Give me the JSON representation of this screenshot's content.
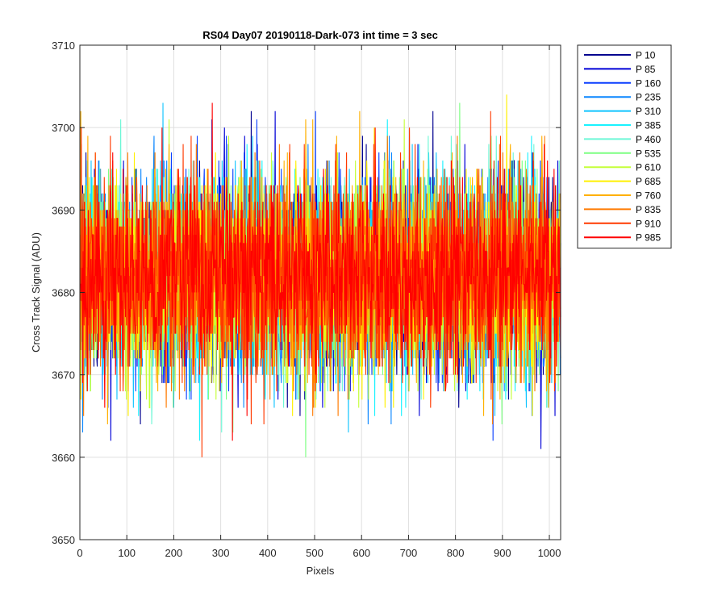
{
  "chart_data": {
    "type": "line",
    "title": "RS04 Day07 20190118-Dark-073 int time = 3 sec",
    "xlabel": "Pixels",
    "ylabel": "Cross Track Signal (ADU)",
    "xlim": [
      0,
      1024
    ],
    "ylim": [
      3650,
      3710
    ],
    "xticks": [
      0,
      100,
      200,
      300,
      400,
      500,
      600,
      700,
      800,
      900,
      1000
    ],
    "yticks": [
      3650,
      3660,
      3670,
      3680,
      3690,
      3700,
      3710
    ],
    "grid": true,
    "legend_position": "outside-top-right",
    "noise": {
      "mean": 3682,
      "std": 6,
      "min": 3653,
      "max": 3709,
      "n_pixels": 1024
    },
    "series": [
      {
        "name": "P 10",
        "color": "#00008f",
        "seed": 10
      },
      {
        "name": "P 85",
        "color": "#0000d6",
        "seed": 85
      },
      {
        "name": "P 160",
        "color": "#0a3fff",
        "seed": 160
      },
      {
        "name": "P 235",
        "color": "#0a86ff",
        "seed": 235
      },
      {
        "name": "P 310",
        "color": "#10c4ff",
        "seed": 310
      },
      {
        "name": "P 385",
        "color": "#19f2ff",
        "seed": 385
      },
      {
        "name": "P 460",
        "color": "#6cf7d6",
        "seed": 460
      },
      {
        "name": "P 535",
        "color": "#7dff82",
        "seed": 535
      },
      {
        "name": "P 610",
        "color": "#c5ff3a",
        "seed": 610
      },
      {
        "name": "P 685",
        "color": "#fff000",
        "seed": 685
      },
      {
        "name": "P 760",
        "color": "#ffb000",
        "seed": 760
      },
      {
        "name": "P 835",
        "color": "#ff7a00",
        "seed": 835
      },
      {
        "name": "P 910",
        "color": "#ff3a00",
        "seed": 910
      },
      {
        "name": "P 985",
        "color": "#ff0000",
        "seed": 985
      }
    ]
  }
}
